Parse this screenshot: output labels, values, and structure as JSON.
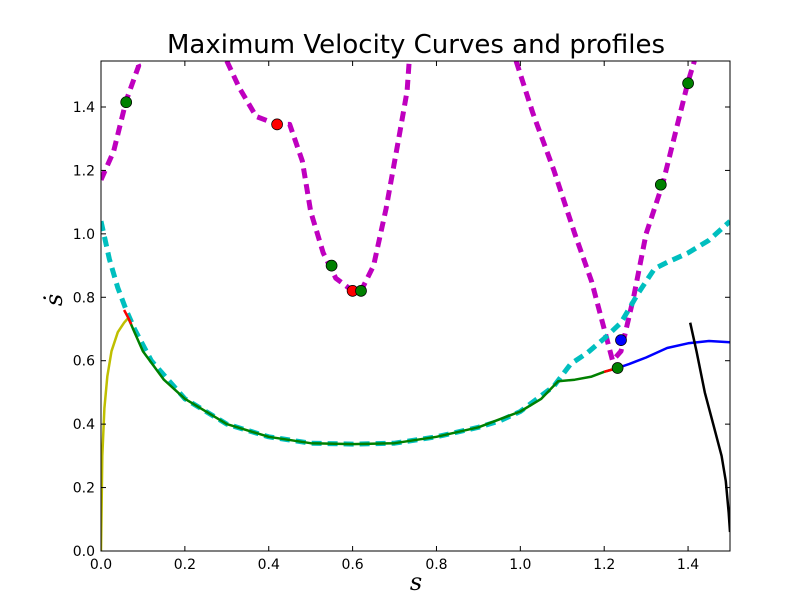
{
  "chart_data": {
    "type": "line",
    "title": "Maximum Velocity Curves and profiles",
    "xlabel": "s",
    "ylabel": "ṡ",
    "xlim": [
      0.0,
      1.5
    ],
    "ylim": [
      0.0,
      1.545
    ],
    "xticks": [
      "0.0",
      "0.2",
      "0.4",
      "0.6",
      "0.8",
      "1.0",
      "1.2",
      "1.4"
    ],
    "yticks": [
      "0.0",
      "0.2",
      "0.4",
      "0.6",
      "0.8",
      "1.0",
      "1.2",
      "1.4"
    ],
    "grid": false,
    "legend": "none",
    "series": [
      {
        "color": "#bf00bf",
        "style": "dashed-thick",
        "segments": [
          [
            [
              0.0,
              1.17
            ],
            [
              0.03,
              1.26
            ],
            [
              0.06,
              1.42
            ],
            [
              0.09,
              1.53
            ],
            [
              0.085,
              1.545
            ]
          ],
          [
            [
              0.3,
              1.545
            ],
            [
              0.33,
              1.46
            ],
            [
              0.37,
              1.37
            ],
            [
              0.42,
              1.345
            ],
            [
              0.45,
              1.345
            ],
            [
              0.48,
              1.23
            ],
            [
              0.5,
              1.07
            ],
            [
              0.53,
              0.94
            ],
            [
              0.56,
              0.86
            ],
            [
              0.6,
              0.82
            ],
            [
              0.62,
              0.82
            ],
            [
              0.65,
              0.9
            ],
            [
              0.68,
              1.08
            ],
            [
              0.71,
              1.3
            ],
            [
              0.73,
              1.45
            ],
            [
              0.735,
              1.545
            ]
          ],
          [
            [
              0.99,
              1.545
            ],
            [
              1.03,
              1.38
            ],
            [
              1.08,
              1.2
            ],
            [
              1.13,
              1.0
            ],
            [
              1.17,
              0.85
            ],
            [
              1.2,
              0.7
            ],
            [
              1.22,
              0.6
            ],
            [
              1.24,
              0.63
            ],
            [
              1.27,
              0.8
            ],
            [
              1.3,
              1.0
            ],
            [
              1.34,
              1.16
            ],
            [
              1.37,
              1.32
            ],
            [
              1.4,
              1.48
            ],
            [
              1.415,
              1.545
            ]
          ]
        ]
      },
      {
        "color": "#00bfbf",
        "style": "dashed-thick",
        "segments": [
          [
            [
              0.0,
              1.04
            ],
            [
              0.02,
              0.92
            ],
            [
              0.04,
              0.83
            ],
            [
              0.06,
              0.76
            ],
            [
              0.08,
              0.7
            ],
            [
              0.12,
              0.6
            ],
            [
              0.2,
              0.48
            ],
            [
              0.3,
              0.4
            ],
            [
              0.4,
              0.36
            ],
            [
              0.5,
              0.34
            ],
            [
              0.6,
              0.337
            ],
            [
              0.7,
              0.34
            ],
            [
              0.8,
              0.36
            ],
            [
              0.9,
              0.39
            ],
            [
              0.95,
              0.41
            ],
            [
              1.0,
              0.44
            ],
            [
              1.05,
              0.49
            ],
            [
              1.08,
              0.52
            ],
            [
              1.12,
              0.59
            ],
            [
              1.16,
              0.625
            ],
            [
              1.2,
              0.67
            ],
            [
              1.24,
              0.72
            ],
            [
              1.28,
              0.81
            ],
            [
              1.32,
              0.89
            ],
            [
              1.35,
              0.91
            ],
            [
              1.4,
              0.94
            ],
            [
              1.45,
              0.98
            ],
            [
              1.5,
              1.04
            ]
          ]
        ]
      },
      {
        "color": "#bfbf00",
        "style": "solid",
        "segments": [
          [
            [
              0.0,
              0.0
            ],
            [
              0.003,
              0.3
            ],
            [
              0.008,
              0.45
            ],
            [
              0.015,
              0.55
            ],
            [
              0.025,
              0.63
            ],
            [
              0.04,
              0.69
            ],
            [
              0.055,
              0.72
            ],
            [
              0.065,
              0.735
            ]
          ]
        ]
      },
      {
        "color": "#008000",
        "style": "solid",
        "segments": [
          [
            [
              0.065,
              0.735
            ],
            [
              0.08,
              0.69
            ],
            [
              0.1,
              0.63
            ],
            [
              0.15,
              0.54
            ],
            [
              0.2,
              0.48
            ],
            [
              0.3,
              0.4
            ],
            [
              0.4,
              0.36
            ],
            [
              0.5,
              0.34
            ],
            [
              0.6,
              0.337
            ],
            [
              0.7,
              0.34
            ],
            [
              0.8,
              0.36
            ],
            [
              0.9,
              0.39
            ],
            [
              1.0,
              0.44
            ],
            [
              1.05,
              0.48
            ],
            [
              1.09,
              0.535
            ],
            [
              1.13,
              0.54
            ],
            [
              1.17,
              0.55
            ],
            [
              1.2,
              0.565
            ],
            [
              1.232,
              0.577
            ]
          ]
        ]
      },
      {
        "color": "#0000ff",
        "style": "solid",
        "segments": [
          [
            [
              1.232,
              0.577
            ],
            [
              1.26,
              0.59
            ],
            [
              1.3,
              0.61
            ],
            [
              1.35,
              0.64
            ],
            [
              1.4,
              0.655
            ],
            [
              1.45,
              0.662
            ],
            [
              1.5,
              0.658
            ]
          ]
        ]
      },
      {
        "color": "#ff0000",
        "style": "solid",
        "segments": [
          [
            [
              0.055,
              0.76
            ],
            [
              0.065,
              0.735
            ],
            [
              0.072,
              0.715
            ]
          ],
          [
            [
              1.2,
              0.565
            ],
            [
              1.232,
              0.577
            ]
          ]
        ]
      },
      {
        "color": "#000000",
        "style": "solid",
        "segments": [
          [
            [
              1.405,
              0.72
            ],
            [
              1.42,
              0.63
            ],
            [
              1.44,
              0.5
            ],
            [
              1.46,
              0.4
            ],
            [
              1.48,
              0.3
            ],
            [
              1.49,
              0.22
            ],
            [
              1.497,
              0.12
            ],
            [
              1.5,
              0.06
            ]
          ]
        ]
      }
    ],
    "markers": [
      {
        "x": 0.06,
        "y": 1.415,
        "color": "#008000"
      },
      {
        "x": 0.42,
        "y": 1.345,
        "color": "#ff0000"
      },
      {
        "x": 0.55,
        "y": 0.9,
        "color": "#008000"
      },
      {
        "x": 0.6,
        "y": 0.82,
        "color": "#ff0000"
      },
      {
        "x": 0.62,
        "y": 0.82,
        "color": "#008000"
      },
      {
        "x": 1.24,
        "y": 0.665,
        "color": "#0000ff"
      },
      {
        "x": 1.232,
        "y": 0.577,
        "color": "#008000"
      },
      {
        "x": 1.335,
        "y": 1.155,
        "color": "#008000"
      },
      {
        "x": 1.4,
        "y": 1.475,
        "color": "#008000"
      }
    ]
  }
}
